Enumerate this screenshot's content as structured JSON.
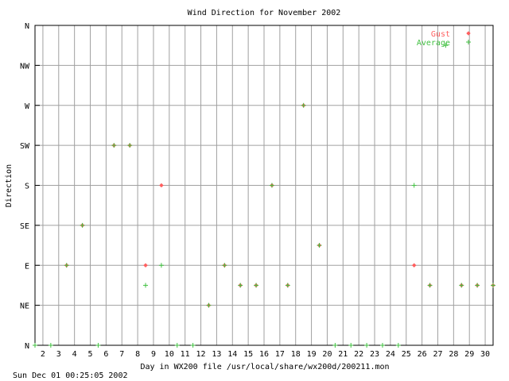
{
  "chart_data": {
    "type": "scatter",
    "title": "Wind Direction for November 2002",
    "xlabel": "Day in WX200 file /usr/local/share/wx200d/200211.mon",
    "ylabel": "Direction",
    "footer": "Sun Dec 01 00:25:05 2002",
    "x_ticks": [
      "2",
      "3",
      "4",
      "5",
      "6",
      "7",
      "8",
      "9",
      "10",
      "11",
      "12",
      "13",
      "14",
      "15",
      "16",
      "17",
      "18",
      "19",
      "20",
      "21",
      "22",
      "23",
      "24",
      "25",
      "26",
      "27",
      "28",
      "29",
      "30"
    ],
    "y_ticks": [
      "N",
      "NE",
      "E",
      "SE",
      "S",
      "SW",
      "W",
      "NW",
      "N"
    ],
    "xlim": [
      1.5,
      30.5
    ],
    "ylim": [
      0,
      360
    ],
    "grid": true,
    "legend_position": "top-right",
    "colors": {
      "gust": "#ff6060",
      "average": "#40c040",
      "grid": "#a0a0a0"
    },
    "series": [
      {
        "name": "Gust",
        "marker": "diamond",
        "points": [
          {
            "x": 3.5,
            "y": 90
          },
          {
            "x": 4.5,
            "y": 135
          },
          {
            "x": 6.5,
            "y": 225
          },
          {
            "x": 7.5,
            "y": 225
          },
          {
            "x": 8.5,
            "y": 90
          },
          {
            "x": 9.5,
            "y": 180
          },
          {
            "x": 12.5,
            "y": 45
          },
          {
            "x": 13.5,
            "y": 90
          },
          {
            "x": 14.5,
            "y": 67.5
          },
          {
            "x": 15.5,
            "y": 67.5
          },
          {
            "x": 16.5,
            "y": 180
          },
          {
            "x": 17.5,
            "y": 67.5
          },
          {
            "x": 18.5,
            "y": 270
          },
          {
            "x": 19.5,
            "y": 112.5
          },
          {
            "x": 25.5,
            "y": 90
          },
          {
            "x": 26.5,
            "y": 67.5
          },
          {
            "x": 28.5,
            "y": 67.5
          },
          {
            "x": 29.5,
            "y": 67.5
          },
          {
            "x": 30.5,
            "y": 67.5
          }
        ]
      },
      {
        "name": "Average",
        "marker": "plus",
        "points": [
          {
            "x": 1.5,
            "y": 0
          },
          {
            "x": 2.5,
            "y": 0
          },
          {
            "x": 3.5,
            "y": 90
          },
          {
            "x": 4.5,
            "y": 135
          },
          {
            "x": 5.5,
            "y": 0
          },
          {
            "x": 6.5,
            "y": 225
          },
          {
            "x": 7.5,
            "y": 225
          },
          {
            "x": 8.5,
            "y": 67.5
          },
          {
            "x": 9.5,
            "y": 90
          },
          {
            "x": 10.5,
            "y": 0
          },
          {
            "x": 11.5,
            "y": 0
          },
          {
            "x": 12.5,
            "y": 45
          },
          {
            "x": 13.5,
            "y": 90
          },
          {
            "x": 14.5,
            "y": 67.5
          },
          {
            "x": 15.5,
            "y": 67.5
          },
          {
            "x": 16.5,
            "y": 180
          },
          {
            "x": 17.5,
            "y": 67.5
          },
          {
            "x": 18.5,
            "y": 270
          },
          {
            "x": 19.5,
            "y": 112.5
          },
          {
            "x": 20.5,
            "y": 0
          },
          {
            "x": 21.5,
            "y": 0
          },
          {
            "x": 22.5,
            "y": 0
          },
          {
            "x": 23.5,
            "y": 0
          },
          {
            "x": 24.5,
            "y": 0
          },
          {
            "x": 25.5,
            "y": 180
          },
          {
            "x": 26.5,
            "y": 67.5
          },
          {
            "x": 27.5,
            "y": 337.5
          },
          {
            "x": 28.5,
            "y": 67.5
          },
          {
            "x": 29.5,
            "y": 67.5
          },
          {
            "x": 30.5,
            "y": 67.5
          }
        ]
      }
    ]
  }
}
